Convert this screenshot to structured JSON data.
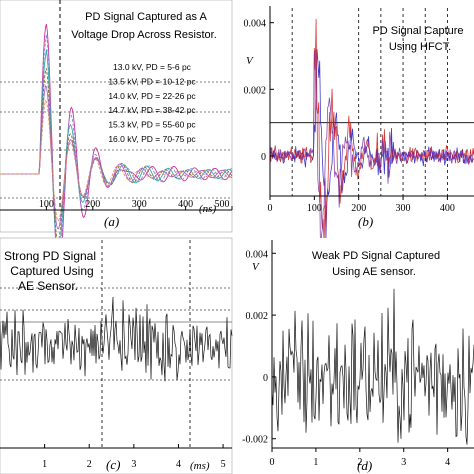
{
  "chart_data": [
    {
      "id": "a",
      "type": "line",
      "panel_label": "(a)",
      "x_unit": "(ns)",
      "x_ticks": [
        "100",
        "200",
        "300",
        "400",
        "500"
      ],
      "xlim": [
        0,
        500
      ],
      "title": "PD Signal Captured as A Voltage Drop Across Resistor.",
      "title_lines": [
        "PD Signal Captured as A",
        "Voltage Drop Across Resistor."
      ],
      "legend_position": "right",
      "legend": [
        "13.0 kV, PD = 5-6 pc",
        "13.5 kV, PD = 10-12 pc",
        "14.0 kV, PD = 22-26 pc",
        "14.7 kV, PD = 38-42 pc",
        "15.3 kV, PD = 55-60 pc",
        "16.0 kV, PD = 70-75 pc"
      ],
      "series_colors": [
        "#cc3399",
        "#8888dd",
        "#33aaaa",
        "#8b6a3a",
        "#aa66cc",
        "#dd8866"
      ],
      "peak_time_ns": 100,
      "oscillation_period_ns": 55,
      "relative_amplitudes": [
        1.0,
        0.9,
        0.8,
        0.7,
        0.6,
        0.5
      ]
    },
    {
      "id": "b",
      "type": "line",
      "panel_label": "(b)",
      "ylabel": "V",
      "y_ticks": [
        "0.004",
        "0.002",
        "0"
      ],
      "ylim": [
        -0.0012,
        0.0045
      ],
      "x_ticks": [
        "0",
        "100",
        "200",
        "300",
        "400"
      ],
      "xlim": [
        0,
        460
      ],
      "title": "PD Signal Captured Using HFCT.",
      "title_lines": [
        "PD Signal Capture",
        "Using HFCT."
      ],
      "series_colors": [
        "#1a1acc",
        "#cc1a1a",
        "#7a2a9a"
      ],
      "burst_window": [
        100,
        240
      ]
    },
    {
      "id": "c",
      "type": "line",
      "panel_label": "(c)",
      "x_unit": "(ms)",
      "x_ticks": [
        "1",
        "2",
        "3",
        "4",
        "5"
      ],
      "xlim": [
        0,
        5.2
      ],
      "title": "Strong PD Signal Captured Using AE Sensor.",
      "title_lines": [
        "Strong PD Signal",
        "Captured Using",
        "AE Sensor."
      ],
      "series_colors": [
        "#111111"
      ]
    },
    {
      "id": "d",
      "type": "line",
      "panel_label": "(d)",
      "ylabel": "V",
      "y_ticks": [
        "0.004",
        "0.002",
        "0",
        "-0.002"
      ],
      "ylim": [
        -0.0023,
        0.0043
      ],
      "x_ticks": [
        "0",
        "1",
        "2",
        "3",
        "4"
      ],
      "xlim": [
        0,
        4.6
      ],
      "title": "Weak PD Signal Captured Using AE sensor.",
      "title_lines": [
        "Weak PD Signal Captured",
        "Using AE sensor."
      ],
      "series_colors": [
        "#111111"
      ]
    }
  ]
}
